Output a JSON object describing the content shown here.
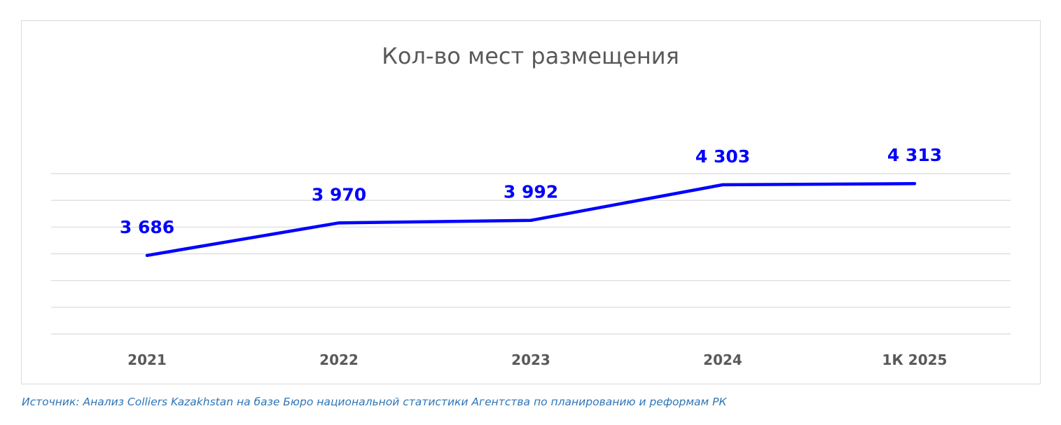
{
  "chart_data": {
    "type": "line",
    "title": "Кол-во мест размещения",
    "categories": [
      "2021",
      "2022",
      "2023",
      "2024",
      "1К 2025"
    ],
    "series": [
      {
        "values": [
          3686,
          3970,
          3992,
          4303,
          4313
        ],
        "labels": [
          "3 686",
          "3 970",
          "3 992",
          "4 303",
          "4 313"
        ],
        "color": "#0000ff"
      }
    ],
    "xlabel": "",
    "ylabel": "",
    "ylim": [
      3000,
      4400
    ],
    "grid": true,
    "legend": "none",
    "colors": {
      "line": "#0000ff",
      "data_label": "#0000ff",
      "gridline": "#d9d9d9",
      "tick_label": "#595959",
      "title": "#595959",
      "source": "#2e75b6"
    }
  },
  "source": "Источник:  Анализ Colliers Kazakhstan на базе Бюро национальной статистики  Агентства  по планированию и реформам РК"
}
